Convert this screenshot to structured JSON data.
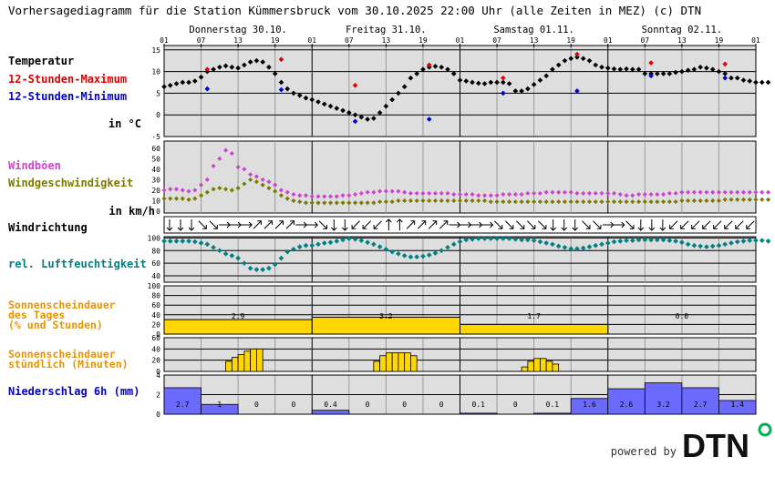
{
  "title": "Vorhersagediagramm für die Station Kümmersbruck vom 30.10.2025 22:00 Uhr (alle Zeiten in MEZ)   (c) DTN",
  "hour_labels": [
    "01",
    "07",
    "13",
    "19",
    "01",
    "07",
    "13",
    "19",
    "01",
    "07",
    "13",
    "19",
    "01",
    "07",
    "13",
    "19",
    "01"
  ],
  "day_labels": [
    "Donnerstag 30.10.",
    "Freitag 31.10.",
    "Samstag 01.11.",
    "Sonntag 02.11."
  ],
  "colors": {
    "panel_bg": "#dedede",
    "temp": "#000000",
    "tmax": "#e00000",
    "tmin": "#0000d0",
    "gust": "#cc44cc",
    "wind": "#7a7a00",
    "humidity": "#008080",
    "sun": "#ffd700",
    "precip": "#6a6aff",
    "orange_label": "#e69500"
  },
  "brand": {
    "powered": "powered by",
    "logo": "DTN"
  },
  "chart_data": {
    "type": "line",
    "panels": [
      {
        "name": "temperature",
        "labels": [
          "Temperatur",
          "12-Stunden-Maximum",
          "12-Stunden-Minimum",
          "in °C"
        ],
        "ylim": [
          -5,
          16
        ],
        "ticks": [
          "15",
          "10",
          "5",
          "0",
          "-5"
        ],
        "series": [
          {
            "values": [
              6.5,
              6.8,
              7.2,
              7.5,
              7.5,
              7.8,
              8.7,
              10.0,
              10.5,
              11.0,
              11.3,
              11.0,
              10.8,
              11.5,
              12.2,
              12.5,
              12.2,
              11.0,
              9.5,
              7.5,
              6.0,
              5.0,
              4.5,
              3.9,
              3.5,
              3.0,
              2.5,
              2.0,
              1.5,
              1.0,
              0.5,
              0.0,
              -0.5,
              -1.0,
              -0.8,
              0.5,
              2.0,
              3.5,
              5.0,
              6.5,
              8.5,
              9.5,
              10.5,
              11.0,
              11.2,
              11.0,
              10.5,
              9.5,
              8.0,
              7.8,
              7.5,
              7.3,
              7.2,
              7.5,
              7.5,
              7.5,
              7.2,
              5.5,
              5.5,
              6.0,
              7.0,
              8.0,
              9.0,
              10.5,
              11.5,
              12.5,
              13.0,
              13.3,
              13.0,
              12.5,
              11.5,
              11.0,
              10.8,
              10.6,
              10.5,
              10.6,
              10.5,
              10.5,
              9.5,
              9.5,
              9.5,
              9.5,
              9.5,
              9.8,
              10.0,
              10.3,
              10.5,
              11.0,
              10.8,
              10.5,
              10.0,
              9.5,
              8.5,
              8.5,
              8.0,
              7.8,
              7.5,
              7.5,
              7.5
            ]
          }
        ],
        "max_points": [
          [
            7,
            10.5
          ],
          [
            19,
            12.8
          ],
          [
            31,
            6.8
          ],
          [
            43,
            11.5
          ],
          [
            55,
            8.5
          ],
          [
            67,
            14.0
          ],
          [
            79,
            12.0
          ],
          [
            91,
            11.7
          ]
        ],
        "min_points": [
          [
            7,
            6.0
          ],
          [
            19,
            5.8
          ],
          [
            31,
            -1.5
          ],
          [
            43,
            -1.0
          ],
          [
            55,
            5.0
          ],
          [
            67,
            5.5
          ],
          [
            79,
            9.0
          ],
          [
            91,
            8.5
          ]
        ]
      },
      {
        "name": "wind",
        "labels": [
          "Windböen",
          "Windgeschwindigkeit",
          "in km/h"
        ],
        "ylim": [
          0,
          65
        ],
        "ticks": [
          "60",
          "50",
          "40",
          "30",
          "20",
          "10",
          "0"
        ],
        "gusts": [
          20,
          21,
          21,
          20,
          19,
          20,
          25,
          30,
          43,
          50,
          58,
          55,
          42,
          40,
          35,
          33,
          30,
          28,
          25,
          20,
          18,
          16,
          15,
          15,
          14,
          14,
          14,
          14,
          14,
          15,
          15,
          16,
          17,
          18,
          18,
          19,
          19,
          19,
          19,
          18,
          17,
          17,
          17,
          17,
          17,
          17,
          17,
          16,
          16,
          16,
          16,
          15,
          15,
          15,
          15,
          16,
          16,
          16,
          16,
          17,
          17,
          17,
          18,
          18,
          18,
          18,
          18,
          17,
          17,
          17,
          17,
          17,
          17,
          17,
          16,
          15,
          15,
          16,
          16,
          16,
          16,
          16,
          17,
          17,
          18,
          18,
          18,
          18,
          18,
          18,
          18,
          18,
          18,
          18,
          18,
          18,
          18,
          18,
          18
        ],
        "speed": [
          12,
          12,
          12,
          12,
          11,
          12,
          15,
          18,
          21,
          22,
          21,
          20,
          22,
          26,
          30,
          28,
          25,
          22,
          19,
          15,
          12,
          10,
          9,
          8,
          8,
          8,
          8,
          8,
          8,
          8,
          8,
          8,
          8,
          8,
          8,
          9,
          9,
          9,
          10,
          10,
          10,
          10,
          10,
          10,
          10,
          10,
          10,
          10,
          10,
          10,
          10,
          10,
          10,
          9,
          9,
          9,
          9,
          9,
          9,
          9,
          9,
          9,
          9,
          9,
          9,
          9,
          9,
          9,
          9,
          9,
          9,
          9,
          9,
          9,
          9,
          9,
          9,
          9,
          9,
          9,
          9,
          9,
          9,
          9,
          10,
          10,
          10,
          10,
          10,
          10,
          10,
          11,
          11,
          11,
          11,
          11,
          11,
          11,
          11
        ]
      },
      {
        "name": "winddirection",
        "labels": [
          "Windrichtung"
        ],
        "arrows_deg": [
          180,
          180,
          180,
          135,
          135,
          90,
          90,
          90,
          45,
          45,
          45,
          45,
          90,
          90,
          135,
          180,
          180,
          225,
          225,
          225,
          0,
          0,
          45,
          45,
          45,
          45,
          90,
          90,
          90,
          90,
          135,
          135,
          135,
          135,
          135,
          180,
          180,
          180,
          135,
          135,
          90,
          90,
          135,
          180,
          180,
          180,
          225,
          225,
          225,
          225,
          225,
          225,
          225,
          225
        ]
      },
      {
        "name": "humidity",
        "labels": [
          "rel. Luftfeuchtigkeit"
        ],
        "ylim": [
          30,
          102
        ],
        "ticks": [
          "100",
          "80",
          "60",
          "40"
        ],
        "values": [
          95,
          95,
          95,
          95,
          95,
          94,
          92,
          90,
          85,
          80,
          75,
          72,
          68,
          60,
          52,
          50,
          50,
          52,
          58,
          68,
          78,
          82,
          86,
          88,
          88,
          90,
          92,
          93,
          95,
          97,
          99,
          98,
          96,
          93,
          90,
          86,
          82,
          78,
          75,
          72,
          70,
          70,
          71,
          73,
          76,
          80,
          85,
          90,
          94,
          97,
          98,
          99,
          99,
          99,
          99,
          99,
          99,
          98,
          97,
          97,
          96,
          94,
          92,
          90,
          87,
          85,
          83,
          83,
          84,
          86,
          88,
          90,
          92,
          94,
          95,
          96,
          96,
          97,
          97,
          97,
          97,
          97,
          96,
          95,
          93,
          90,
          88,
          87,
          86,
          87,
          88,
          90,
          92,
          94,
          95,
          96,
          96,
          96,
          95
        ]
      },
      {
        "name": "sunshine_daily",
        "labels": [
          "Sonnenscheindauer",
          "des Tages",
          "(% und Stunden)"
        ],
        "ylim": [
          0,
          100
        ],
        "ticks": [
          "100",
          "80",
          "60",
          "40",
          "20",
          "0"
        ],
        "days": [
          {
            "percent": 30,
            "hours_label": "2.9"
          },
          {
            "percent": 35,
            "hours_label": "3.2"
          },
          {
            "percent": 20,
            "hours_label": "1.7"
          },
          {
            "percent": 0,
            "hours_label": "0.0"
          }
        ]
      },
      {
        "name": "sunshine_hourly",
        "labels": [
          "Sonnenscheindauer",
          "stündlich (Minuten)"
        ],
        "ylim": [
          0,
          60
        ],
        "ticks": [
          "60",
          "40",
          "20",
          "0"
        ],
        "bars": [
          [
            10,
            18
          ],
          [
            11,
            25
          ],
          [
            12,
            30
          ],
          [
            13,
            36
          ],
          [
            14,
            40
          ],
          [
            15,
            40
          ],
          [
            34,
            18
          ],
          [
            35,
            28
          ],
          [
            36,
            33
          ],
          [
            37,
            33
          ],
          [
            38,
            33
          ],
          [
            39,
            33
          ],
          [
            40,
            28
          ],
          [
            58,
            8
          ],
          [
            59,
            18
          ],
          [
            60,
            23
          ],
          [
            61,
            23
          ],
          [
            62,
            18
          ],
          [
            63,
            13
          ]
        ]
      },
      {
        "name": "precipitation",
        "labels": [
          "Niederschlag 6h (mm)"
        ],
        "ylim": [
          0,
          4
        ],
        "ticks": [
          "4",
          "2",
          "0"
        ],
        "values": [
          2.7,
          1.0,
          0.0,
          0.0,
          0.4,
          0.0,
          0.0,
          0.0,
          0.1,
          0.0,
          0.1,
          1.6,
          2.6,
          3.2,
          2.7,
          1.4
        ],
        "value_labels": [
          "2.7",
          "1",
          "0",
          "0",
          "0.4",
          "0",
          "0",
          "0",
          "0.1",
          "0",
          "0.1",
          "1.6",
          "2.6",
          "3.2",
          "2.7",
          "1.4"
        ]
      }
    ]
  }
}
